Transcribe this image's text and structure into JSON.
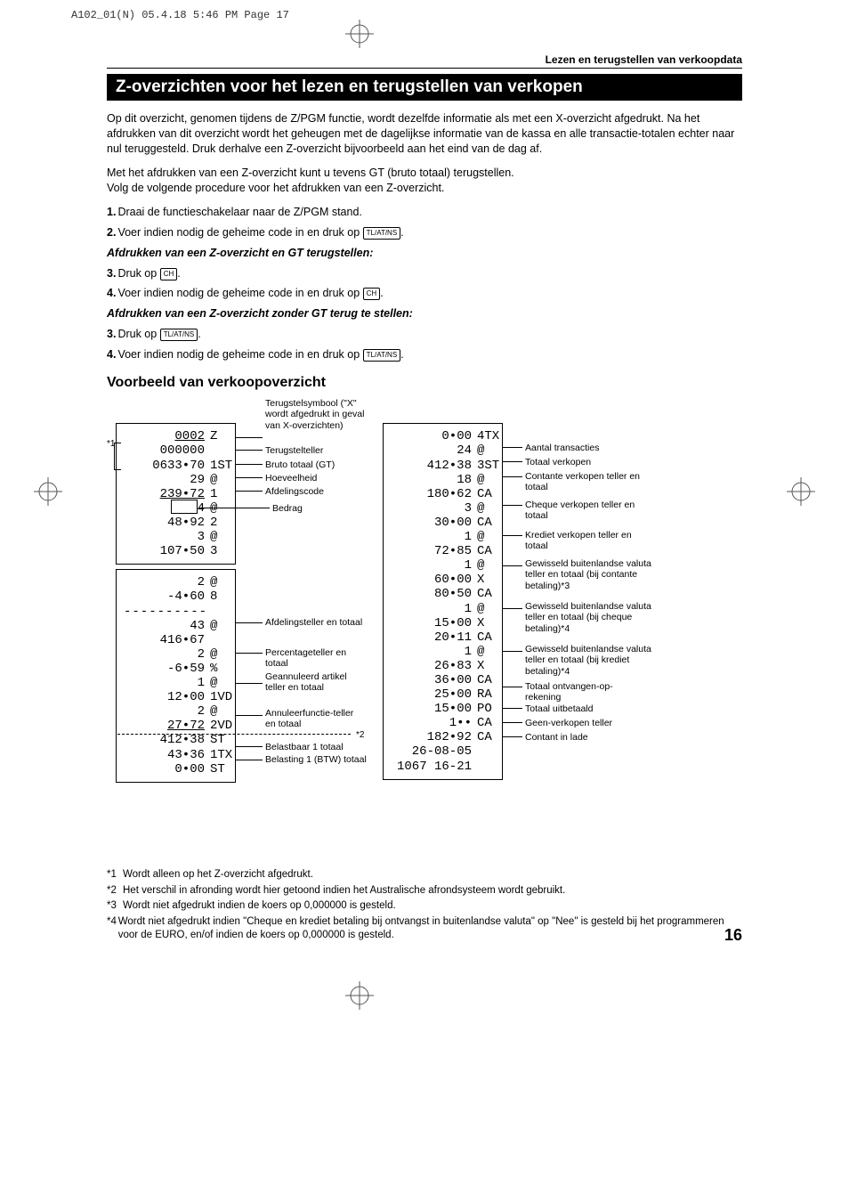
{
  "imposition": "A102_01(N)  05.4.18 5:46 PM  Page 17",
  "sectionLabel": "Lezen en terugstellen van verkoopdata",
  "h1": "Z-overzichten voor het lezen en terugstellen van verkopen",
  "intro1": "Op dit overzicht, genomen tijdens de Z/PGM functie, wordt dezelfde informatie als met een X-overzicht afgedrukt. Na het afdrukken van dit overzicht wordt het geheugen met de dagelijkse informatie van de kassa en alle transactie-totalen echter naar nul teruggesteld. Druk derhalve een Z-overzicht bijvoorbeeld aan het eind van de dag af.",
  "intro2": "Met het afdrukken van een Z-overzicht kunt u tevens GT (bruto totaal) terugstellen.",
  "intro3": "Volg de volgende procedure voor het afdrukken van een Z-overzicht.",
  "steps": {
    "s1": "Draai de functieschakelaar naar de Z/PGM stand.",
    "s2a": "Voer indien nodig de geheime code in en druk op ",
    "key_tlatns": "TL/AT/NS",
    "key_ch": "CH",
    "sub1": "Afdrukken van een Z-overzicht en GT terugstellen:",
    "s3": "Druk op ",
    "s4a": "Voer indien nodig de geheime code in en druk op ",
    "sub2": "Afdrukken van een Z-overzicht zonder GT terug te stellen:"
  },
  "h2": "Voorbeeld van verkoopoverzicht",
  "receipt1_top": [
    {
      "l": "0002",
      "r": "Z",
      "ul": true
    },
    {
      "l": "000000",
      "r": ""
    },
    {
      "l": "0633•70",
      "r": "1ST"
    },
    {
      "l": "29",
      "r": "@"
    },
    {
      "l": "239•72",
      "r": "1",
      "ul": true
    },
    {
      "l": "4",
      "r": "@"
    },
    {
      "l": "48•92",
      "r": "2"
    },
    {
      "l": "3",
      "r": "@"
    },
    {
      "l": "107•50",
      "r": "3"
    }
  ],
  "receipt1_bot": [
    {
      "l": "2",
      "r": "@"
    },
    {
      "l": "-4•60",
      "r": "8"
    },
    {
      "l": "----------",
      "r": "",
      "dash": true
    },
    {
      "l": "43",
      "r": "@"
    },
    {
      "l": "416•67",
      "r": ""
    },
    {
      "l": "2",
      "r": "@"
    },
    {
      "l": "-6•59",
      "r": "%"
    },
    {
      "l": "1",
      "r": "@"
    },
    {
      "l": "12•00",
      "r": "1VD"
    },
    {
      "l": "2",
      "r": "@"
    },
    {
      "l": "27•72",
      "r": "2VD",
      "ul": true
    },
    {
      "l": "412•38",
      "r": "ST"
    },
    {
      "l": "43•36",
      "r": "1TX"
    },
    {
      "l": "0•00",
      "r": "ST"
    }
  ],
  "receipt2": [
    {
      "l": "0•00",
      "r": "4TX"
    },
    {
      "l": "24",
      "r": "@"
    },
    {
      "l": "412•38",
      "r": "3ST"
    },
    {
      "l": "18",
      "r": "@"
    },
    {
      "l": "180•62",
      "r": "CA"
    },
    {
      "l": "3",
      "r": "@"
    },
    {
      "l": "30•00",
      "r": "CA"
    },
    {
      "l": "1",
      "r": "@"
    },
    {
      "l": "72•85",
      "r": "CA"
    },
    {
      "l": "1",
      "r": "@"
    },
    {
      "l": "60•00",
      "r": "X"
    },
    {
      "l": "80•50",
      "r": "CA"
    },
    {
      "l": "1",
      "r": "@"
    },
    {
      "l": "15•00",
      "r": "X"
    },
    {
      "l": "20•11",
      "r": "CA"
    },
    {
      "l": "1",
      "r": "@"
    },
    {
      "l": "26•83",
      "r": "X"
    },
    {
      "l": "36•00",
      "r": "CA"
    },
    {
      "l": "25•00",
      "r": "RA"
    },
    {
      "l": "15•00",
      "r": "PO"
    },
    {
      "l": "1••",
      "r": "CA"
    },
    {
      "l": "182•92",
      "r": "CA"
    },
    {
      "l": "26-08-05",
      "r": ""
    },
    {
      "l": "1067 16-21",
      "r": ""
    }
  ],
  "left_callouts": [
    "Terugstelsymbool (\"X\" wordt afgedrukt in geval van X-overzichten)",
    "Terugstelteller",
    "Bruto totaal (GT)",
    "Hoeveelheid",
    "Afdelingscode",
    "Bedrag",
    "Afdelingsteller en totaal",
    "Percentageteller en totaal",
    "Geannuleerd artikel teller en totaal",
    "Annuleerfunctie-teller en totaal",
    "Belastbaar 1 totaal",
    "Belasting 1 (BTW) totaal"
  ],
  "right_callouts": [
    "Aantal transacties",
    "Totaal verkopen",
    "Contante verkopen teller en totaal",
    "Cheque verkopen teller en totaal",
    "Krediet verkopen teller en totaal",
    "Gewisseld buitenlandse valuta teller en totaal (bij contante betaling)*3",
    "Gewisseld buitenlandse valuta teller en totaal (bij cheque betaling)*4",
    "Gewisseld buitenlandse valuta teller en totaal (bij krediet betaling)*4",
    "Totaal ontvangen-op-rekening",
    "Totaal uitbetaald",
    "Geen-verkopen teller",
    "Contant in lade"
  ],
  "star1_marker": "*1",
  "star2_marker": "*2",
  "footnotes": [
    {
      "n": "*1",
      "t": "Wordt alleen op het Z-overzicht afgedrukt."
    },
    {
      "n": "*2",
      "t": "Het verschil in afronding wordt hier getoond indien het Australische afrondsysteem wordt gebruikt."
    },
    {
      "n": "*3",
      "t": "Wordt niet afgedrukt indien de koers op 0,000000 is gesteld."
    },
    {
      "n": "*4",
      "t": "Wordt niet afgedrukt indien \"Cheque en krediet betaling bij ontvangst in buitenlandse valuta\" op \"Nee\" is gesteld bij het programmeren voor de EURO, en/of indien de koers op 0,000000 is gesteld."
    }
  ],
  "pageNum": "16"
}
